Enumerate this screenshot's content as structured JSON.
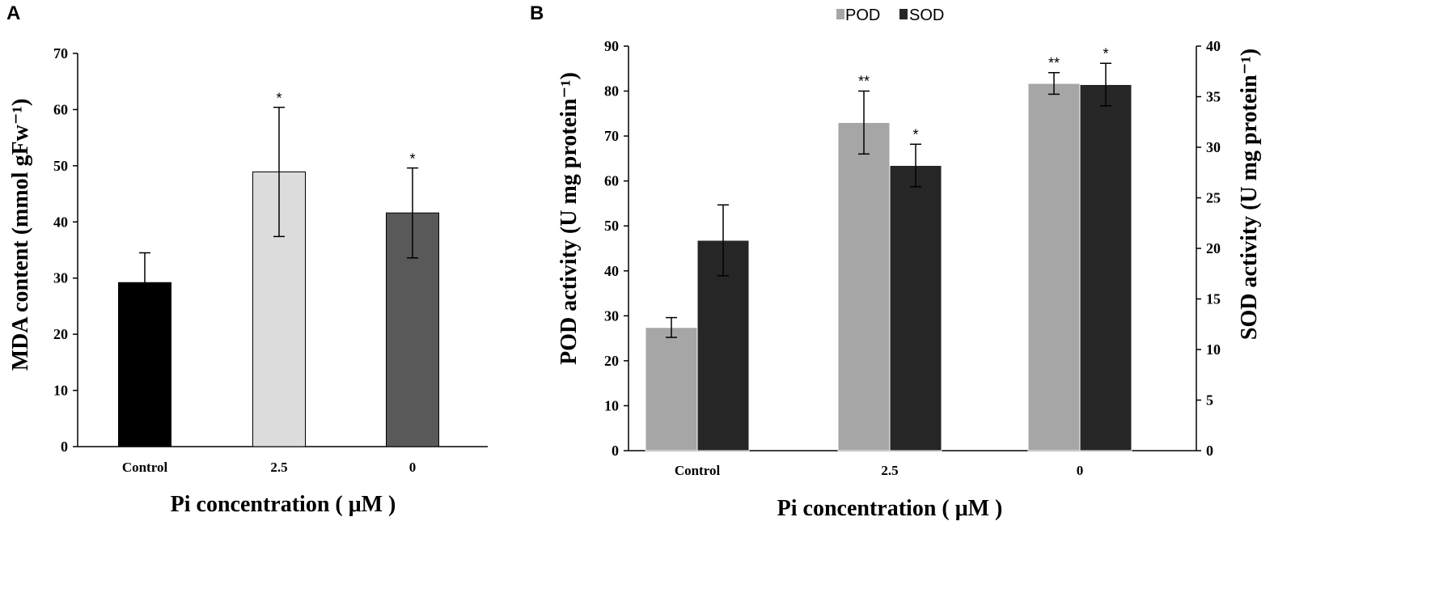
{
  "panels": {
    "a": {
      "letter": "A"
    },
    "b": {
      "letter": "B"
    }
  },
  "chart_data": [
    {
      "type": "bar",
      "panel": "A",
      "categories": [
        "Control",
        "2.5",
        "0"
      ],
      "values": [
        29.2,
        48.9,
        41.6
      ],
      "errors": [
        5.3,
        11.5,
        8.0
      ],
      "bar_colors": [
        "#000000",
        "#dcdcdc",
        "#595959"
      ],
      "significance": [
        "",
        "*",
        "*"
      ],
      "xlabel": "Pi concentration ( μM )",
      "ylabel": "MDA content (mmol gFw⁻¹)",
      "ylim": [
        0,
        70
      ],
      "yticks": [
        0,
        10,
        20,
        30,
        40,
        50,
        60,
        70
      ],
      "grid": false
    },
    {
      "type": "bar",
      "panel": "B",
      "categories": [
        "Control",
        "2.5",
        "0"
      ],
      "series": [
        {
          "name": "POD",
          "axis": "left",
          "color": "#a6a6a6",
          "values": [
            27.4,
            73.0,
            81.7
          ],
          "errors": [
            2.2,
            7.0,
            2.4
          ],
          "significance": [
            "",
            "**",
            "**"
          ]
        },
        {
          "name": "SOD",
          "axis": "right",
          "color": "#262626",
          "values": [
            20.8,
            28.2,
            36.2
          ],
          "errors": [
            3.5,
            2.1,
            2.1
          ],
          "significance": [
            "",
            "*",
            "*"
          ]
        }
      ],
      "xlabel": "Pi concentration ( μM )",
      "ylabel_left": "POD activity (U mg protein⁻¹)",
      "ylabel_right": "SOD activity (U mg protein⁻¹)",
      "ylim_left": [
        0,
        90
      ],
      "ylim_right": [
        0,
        40
      ],
      "yticks_left": [
        0,
        10,
        20,
        30,
        40,
        50,
        60,
        70,
        80,
        90
      ],
      "yticks_right": [
        0,
        5,
        10,
        15,
        20,
        25,
        30,
        35,
        40
      ],
      "legend_position": "top",
      "grid": false
    }
  ]
}
